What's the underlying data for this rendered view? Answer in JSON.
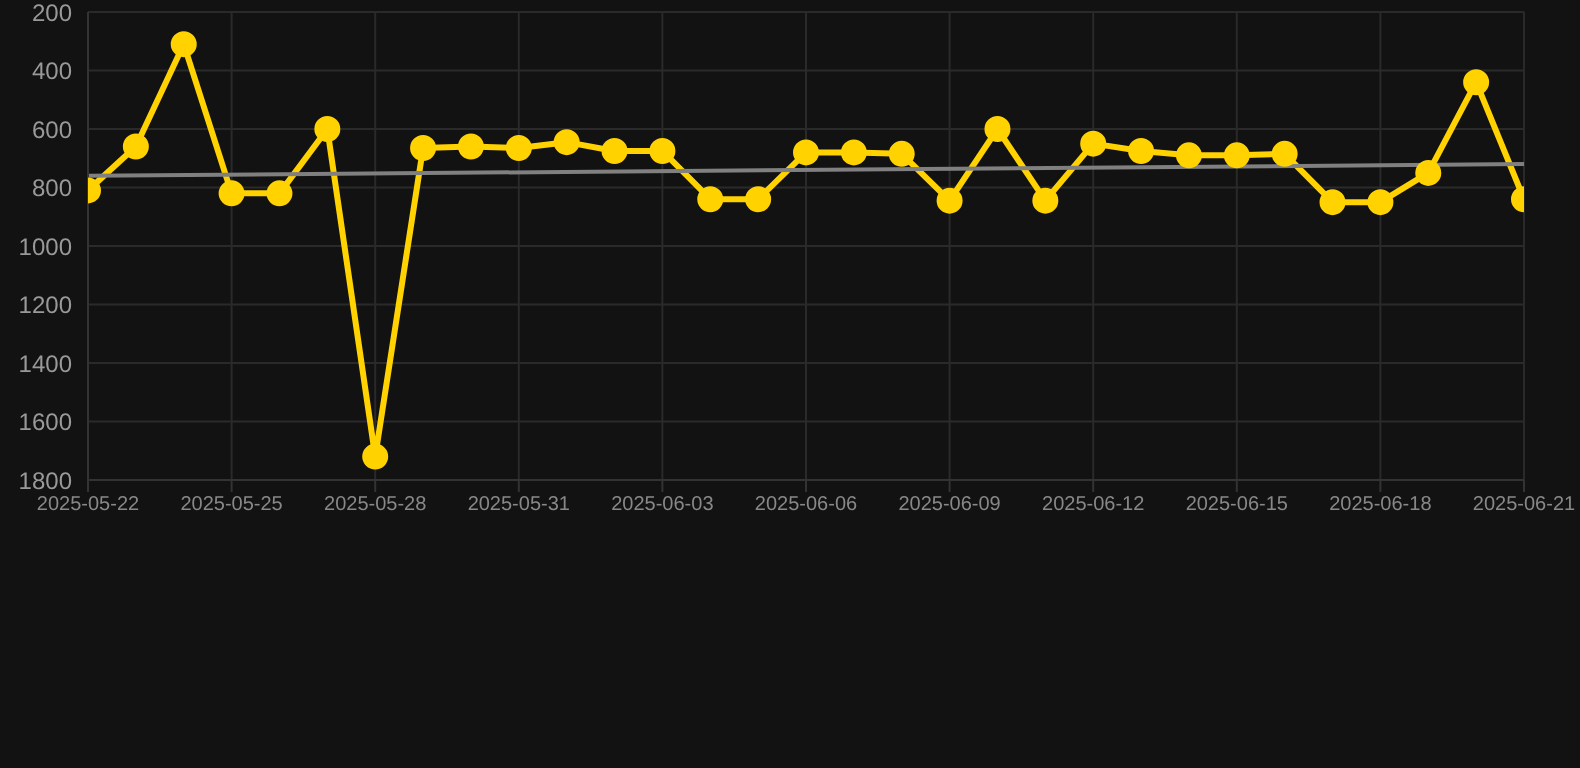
{
  "chart_data": {
    "type": "line",
    "x": [
      "2025-05-22",
      "2025-05-23",
      "2025-05-24",
      "2025-05-25",
      "2025-05-26",
      "2025-05-27",
      "2025-05-28",
      "2025-05-29",
      "2025-05-30",
      "2025-05-31",
      "2025-06-01",
      "2025-06-02",
      "2025-06-03",
      "2025-06-04",
      "2025-06-05",
      "2025-06-06",
      "2025-06-07",
      "2025-06-08",
      "2025-06-09",
      "2025-06-10",
      "2025-06-11",
      "2025-06-12",
      "2025-06-13",
      "2025-06-14",
      "2025-06-15",
      "2025-06-16",
      "2025-06-17",
      "2025-06-18",
      "2025-06-19",
      "2025-06-20",
      "2025-06-21"
    ],
    "series": [
      {
        "color": "#ffd200",
        "marker": "circle",
        "values": [
          810,
          660,
          310,
          820,
          820,
          600,
          1720,
          665,
          660,
          665,
          645,
          675,
          675,
          840,
          840,
          680,
          680,
          685,
          845,
          600,
          845,
          650,
          675,
          690,
          690,
          685,
          850,
          850,
          750,
          440,
          840
        ]
      },
      {
        "color": "#808080",
        "marker": "none",
        "x": [
          "2025-05-22",
          "2025-06-21"
        ],
        "values": [
          760,
          720
        ]
      }
    ],
    "xlim": [
      "2025-05-22",
      "2025-06-21"
    ],
    "xticks": [
      "2025-05-22",
      "2025-05-25",
      "2025-05-28",
      "2025-05-31",
      "2025-06-03",
      "2025-06-06",
      "2025-06-09",
      "2025-06-12",
      "2025-06-15",
      "2025-06-18",
      "2025-06-21"
    ],
    "ylim": [
      1800,
      200
    ],
    "yticks": [
      200,
      400,
      600,
      800,
      1000,
      1200,
      1400,
      1600,
      1800
    ],
    "grid": true,
    "line_style": "solid"
  }
}
